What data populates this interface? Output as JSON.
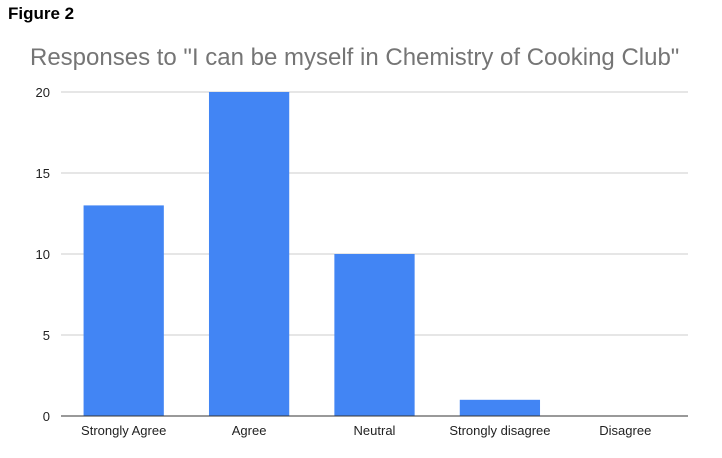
{
  "figure_label": "Figure 2",
  "colors": {
    "bar": "#4285F4",
    "grid": "#cccccc",
    "axis": "#333333",
    "title": "#757575"
  },
  "chart_data": {
    "type": "bar",
    "title": "Responses to \"I can be myself in Chemistry of Cooking Club\"",
    "xlabel": "",
    "ylabel": "",
    "categories": [
      "Strongly Agree",
      "Agree",
      "Neutral",
      "Strongly disagree",
      "Disagree"
    ],
    "values": [
      13,
      20,
      10,
      1,
      0
    ],
    "ylim": [
      0,
      20
    ],
    "yticks": [
      0,
      5,
      10,
      15,
      20
    ],
    "grid": true,
    "legend": "none"
  }
}
